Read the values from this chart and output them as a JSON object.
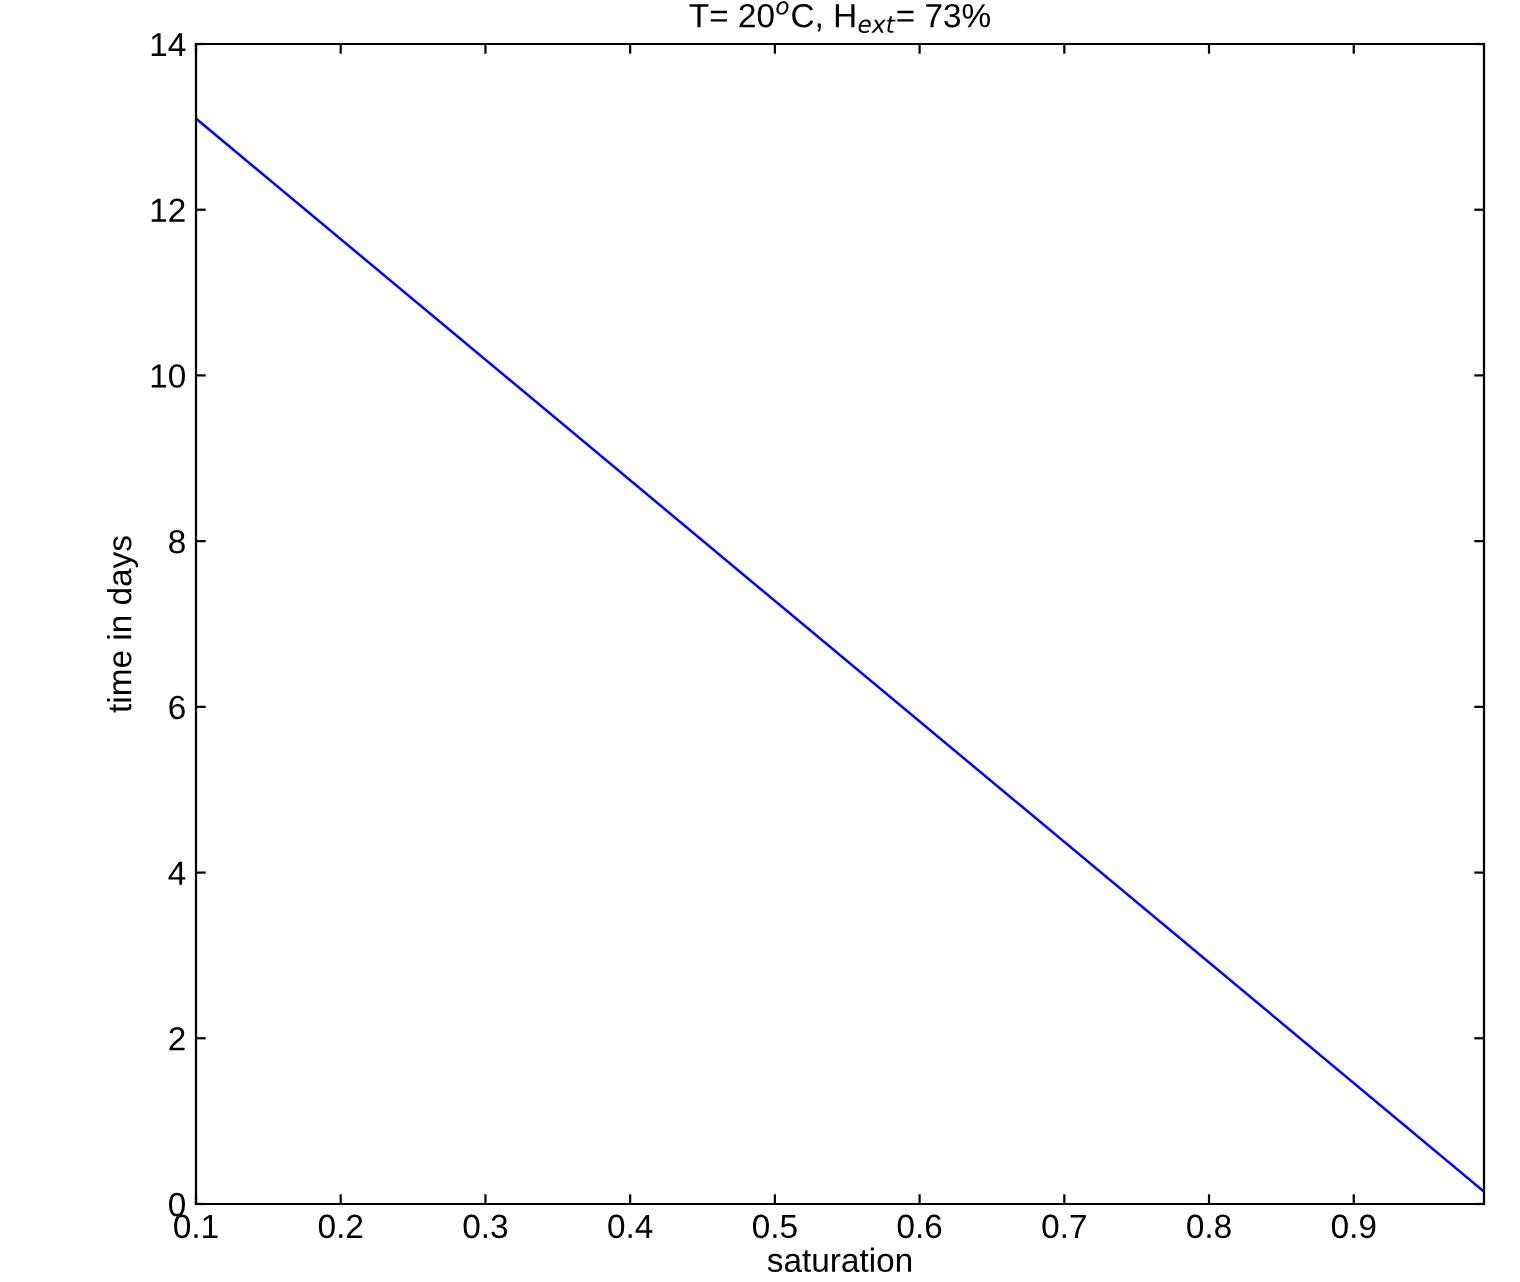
{
  "chart_data": {
    "type": "line",
    "title": "T= 20$^{o}$C, H$_{ext}$= 73%",
    "xlabel": "saturation",
    "ylabel": "time in days",
    "x": [
      0.1,
      0.99
    ],
    "series": [
      {
        "color": "#0000ff",
        "values": [
          13.1,
          0.15
        ]
      }
    ],
    "xlim": [
      0.1,
      0.99
    ],
    "xticks": [
      0.1,
      0.2,
      0.3,
      0.4,
      0.5,
      0.6,
      0.7,
      0.8,
      0.9
    ],
    "ylim": [
      0,
      14
    ],
    "yticks": [
      0,
      2,
      4,
      6,
      8,
      10,
      12,
      14
    ],
    "grid": false,
    "marker": "none",
    "line_style": "solid"
  }
}
